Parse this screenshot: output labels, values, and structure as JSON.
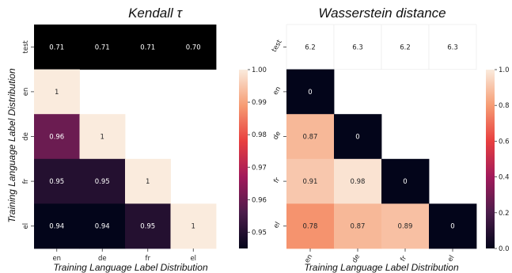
{
  "chart_data": [
    {
      "type": "heatmap",
      "title": "Kendall τ",
      "xlabel": "Training Language Label Distribution",
      "ylabel": "Training Language Label Distribution",
      "x_categories": [
        "en",
        "de",
        "fr",
        "el"
      ],
      "y_categories": [
        "test",
        "en",
        "de",
        "fr",
        "el"
      ],
      "values": [
        [
          0.71,
          0.71,
          0.71,
          0.7
        ],
        [
          1,
          null,
          null,
          null
        ],
        [
          0.96,
          1,
          null,
          null
        ],
        [
          0.95,
          0.95,
          1,
          null
        ],
        [
          0.94,
          0.94,
          0.95,
          1
        ]
      ],
      "labels": [
        [
          "0.71",
          "0.71",
          "0.71",
          "0.70"
        ],
        [
          "1",
          "",
          "",
          ""
        ],
        [
          "0.96",
          "1",
          "",
          ""
        ],
        [
          "0.95",
          "0.95",
          "1",
          ""
        ],
        [
          "0.94",
          "0.94",
          "0.95",
          "1"
        ]
      ],
      "colorscale": "rocket",
      "colorbar": {
        "min": 0.945,
        "max": 1.0,
        "ticks": [
          "1.00",
          "0.99",
          "0.98",
          "0.97",
          "0.96",
          "0.95"
        ],
        "tick_values": [
          1.0,
          0.99,
          0.98,
          0.97,
          0.96,
          0.95
        ]
      },
      "test_row_color": "#000000",
      "y_tick_rotation": "vertical",
      "x_tick_rotation": "horizontal"
    },
    {
      "type": "heatmap",
      "title": "Wasserstein distance",
      "xlabel": "Training Language Label Distribution",
      "ylabel": "",
      "x_categories": [
        "en",
        "de",
        "fr",
        "el"
      ],
      "y_categories": [
        "test",
        "en",
        "de",
        "fr",
        "el"
      ],
      "values": [
        [
          6.2,
          6.3,
          6.2,
          6.3
        ],
        [
          0,
          null,
          null,
          null
        ],
        [
          0.87,
          0,
          null,
          null
        ],
        [
          0.91,
          0.98,
          0,
          null
        ],
        [
          0.78,
          0.87,
          0.89,
          0
        ]
      ],
      "labels": [
        [
          "6.2",
          "6.3",
          "6.2",
          "6.3"
        ],
        [
          "0",
          "",
          "",
          ""
        ],
        [
          "0.87",
          "0",
          "",
          ""
        ],
        [
          "0.91",
          "0.98",
          "0",
          ""
        ],
        [
          "0.78",
          "0.87",
          "0.89",
          "0"
        ]
      ],
      "colorscale": "rocket",
      "colorbar": {
        "min": 0.0,
        "max": 1.0,
        "ticks": [
          "1.0",
          "0.8",
          "0.6",
          "0.4",
          "0.2",
          "0.0"
        ],
        "tick_values": [
          1.0,
          0.8,
          0.6,
          0.4,
          0.2,
          0.0
        ]
      },
      "test_row_color": "#ffffff",
      "y_tick_rotation": "diagonal",
      "x_tick_rotation": "diagonal"
    }
  ]
}
